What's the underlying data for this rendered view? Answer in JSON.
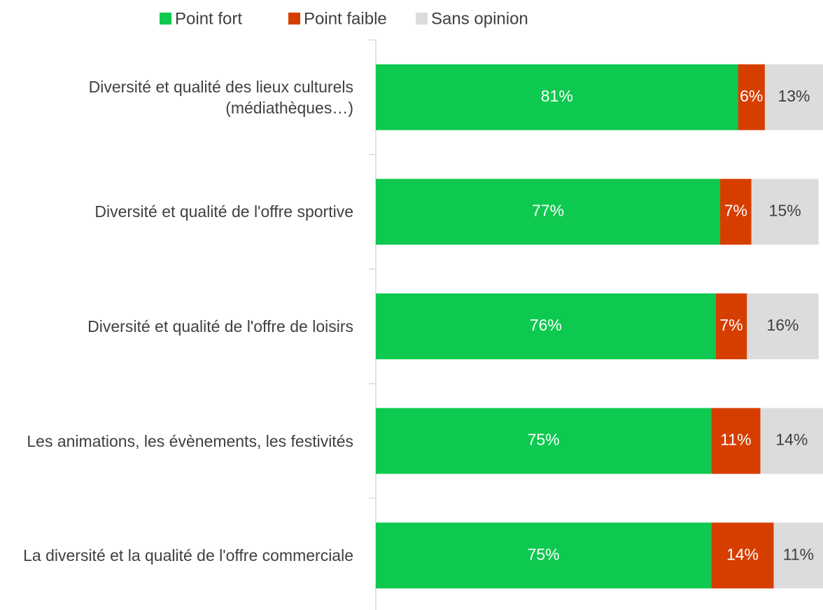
{
  "chart_data": {
    "type": "stacked-barh",
    "categories": [
      "Diversité et qualité des lieux culturels (médiathèques…)",
      "Diversité et qualité de l'offre sportive",
      "Diversité et qualité de l'offre de loisirs",
      "Les animations, les évènements, les festivités",
      "La diversité et la qualité de l'offre commerciale"
    ],
    "series": [
      {
        "name": "Point fort",
        "color": "#0dc94f",
        "label_color": "#ffffff",
        "values": [
          81,
          77,
          76,
          75,
          75
        ],
        "value_labels": [
          "81%",
          "77%",
          "76%",
          "75%",
          "75%"
        ]
      },
      {
        "name": "Point faible",
        "color": "#d63e00",
        "label_color": "#ffffff",
        "values": [
          6,
          7,
          7,
          11,
          14
        ],
        "value_labels": [
          "6%",
          "7%",
          "7%",
          "11%",
          "14%"
        ]
      },
      {
        "name": "Sans opinion",
        "color": "#dcdcdc",
        "label_color": "#404040",
        "values": [
          13,
          15,
          16,
          14,
          11
        ],
        "value_labels": [
          "13%",
          "15%",
          "16%",
          "14%",
          "11%"
        ]
      }
    ],
    "xlim": [
      0,
      100
    ],
    "legend": "top"
  }
}
